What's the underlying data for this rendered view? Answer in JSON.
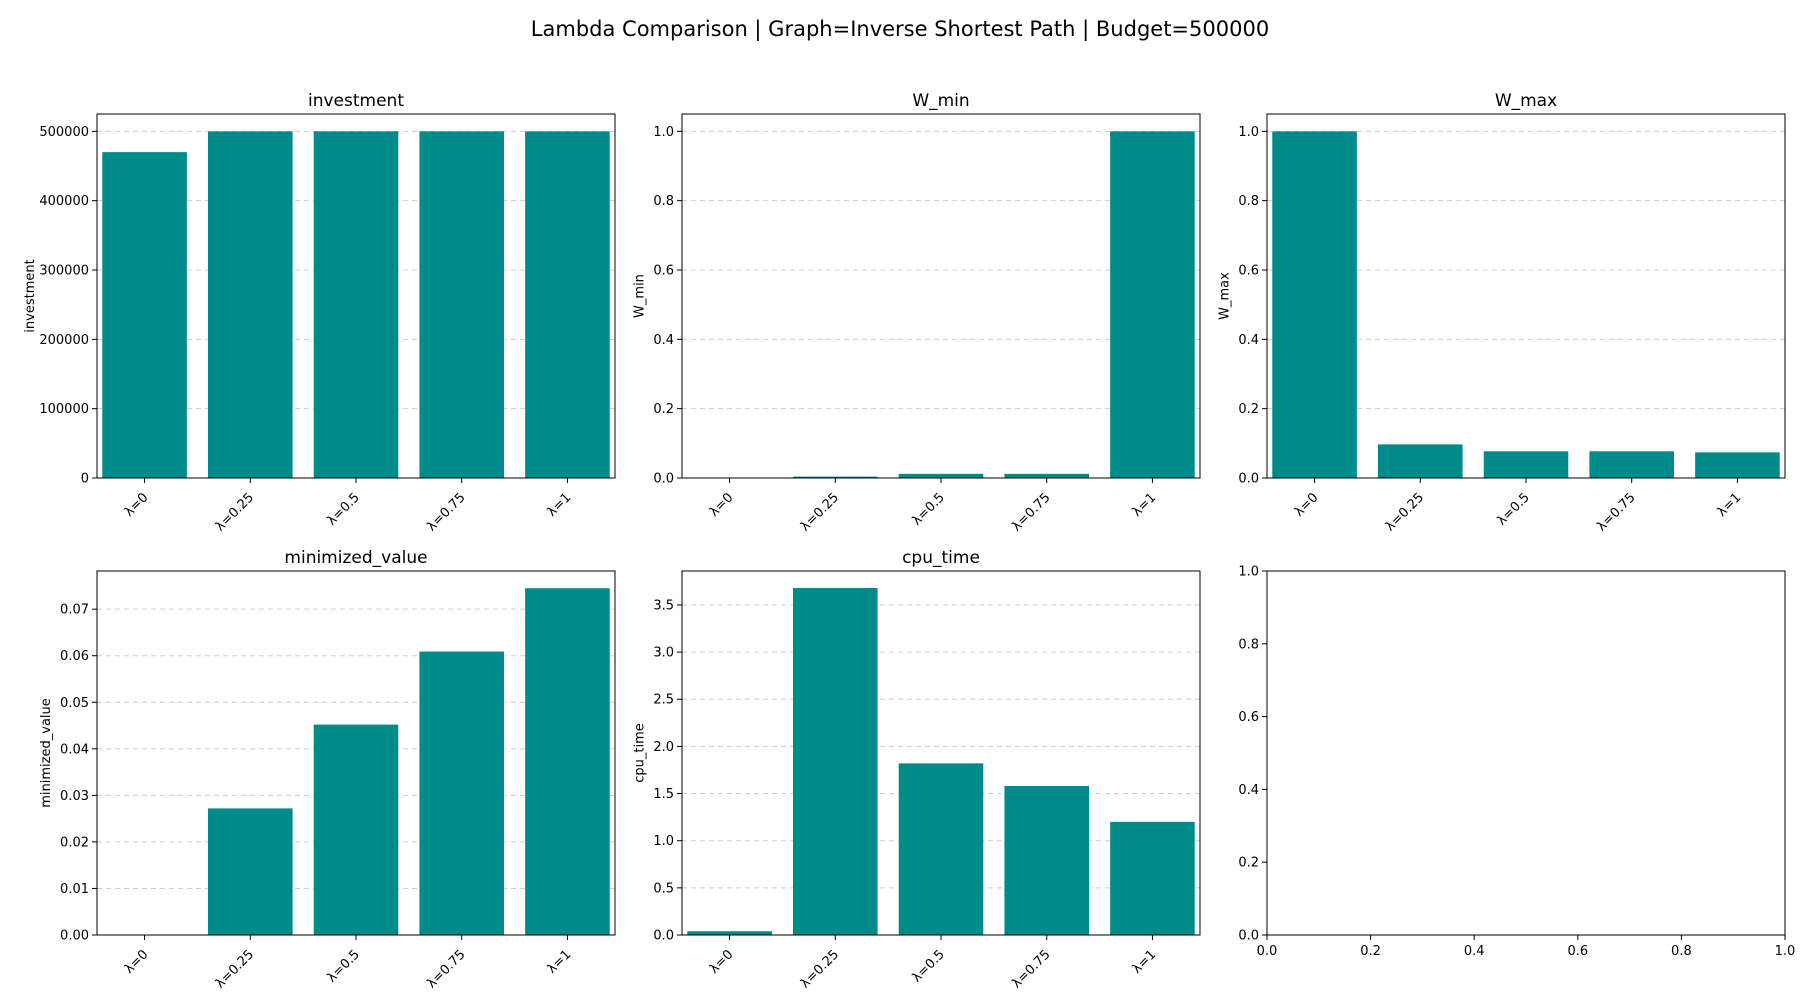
{
  "figure": {
    "title": "Lambda Comparison | Graph=Inverse Shortest Path | Budget=500000",
    "bar_color": "#008b8b"
  },
  "chart_data": [
    {
      "type": "bar",
      "title": "investment",
      "ylabel": "investment",
      "categories": [
        "λ=0",
        "λ=0.25",
        "λ=0.5",
        "λ=0.75",
        "λ=1"
      ],
      "values": [
        470000,
        500000,
        500000,
        500000,
        500000
      ],
      "ylim": [
        0,
        525000
      ],
      "yticks": [
        0,
        100000,
        200000,
        300000,
        400000,
        500000
      ],
      "ytick_labels": [
        "0",
        "100000",
        "200000",
        "300000",
        "400000",
        "500000"
      ],
      "grid": "y-dashed"
    },
    {
      "type": "bar",
      "title": "W_min",
      "ylabel": "W_min",
      "categories": [
        "λ=0",
        "λ=0.25",
        "λ=0.5",
        "λ=0.75",
        "λ=1"
      ],
      "values": [
        0.0,
        0.004,
        0.012,
        0.012,
        1.0
      ],
      "ylim": [
        0,
        1.05
      ],
      "yticks": [
        0,
        0.2,
        0.4,
        0.6,
        0.8,
        1.0
      ],
      "ytick_labels": [
        "0.0",
        "0.2",
        "0.4",
        "0.6",
        "0.8",
        "1.0"
      ],
      "grid": "y-dashed"
    },
    {
      "type": "bar",
      "title": "W_max",
      "ylabel": "W_max",
      "categories": [
        "λ=0",
        "λ=0.25",
        "λ=0.5",
        "λ=0.75",
        "λ=1"
      ],
      "values": [
        1.0,
        0.097,
        0.077,
        0.077,
        0.074
      ],
      "ylim": [
        0,
        1.05
      ],
      "yticks": [
        0,
        0.2,
        0.4,
        0.6,
        0.8,
        1.0
      ],
      "ytick_labels": [
        "0.0",
        "0.2",
        "0.4",
        "0.6",
        "0.8",
        "1.0"
      ],
      "grid": "y-dashed"
    },
    {
      "type": "bar",
      "title": "minimized_value",
      "ylabel": "minimized_value",
      "categories": [
        "λ=0",
        "λ=0.25",
        "λ=0.5",
        "λ=0.75",
        "λ=1"
      ],
      "values": [
        0.0,
        0.0272,
        0.0452,
        0.0609,
        0.0745
      ],
      "ylim": [
        0,
        0.0782
      ],
      "yticks": [
        0,
        0.01,
        0.02,
        0.03,
        0.04,
        0.05,
        0.06,
        0.07
      ],
      "ytick_labels": [
        "0.00",
        "0.01",
        "0.02",
        "0.03",
        "0.04",
        "0.05",
        "0.06",
        "0.07"
      ],
      "grid": "y-dashed"
    },
    {
      "type": "bar",
      "title": "cpu_time",
      "ylabel": "cpu_time",
      "categories": [
        "λ=0",
        "λ=0.25",
        "λ=0.5",
        "λ=0.75",
        "λ=1"
      ],
      "values": [
        0.04,
        3.68,
        1.82,
        1.58,
        1.2
      ],
      "ylim": [
        0,
        3.86
      ],
      "yticks": [
        0,
        0.5,
        1.0,
        1.5,
        2.0,
        2.5,
        3.0,
        3.5
      ],
      "ytick_labels": [
        "0.0",
        "0.5",
        "1.0",
        "1.5",
        "2.0",
        "2.5",
        "3.0",
        "3.5"
      ],
      "grid": "y-dashed"
    },
    {
      "type": "empty",
      "xlim": [
        0,
        1
      ],
      "ylim": [
        0,
        1
      ],
      "xticks": [
        0,
        0.2,
        0.4,
        0.6,
        0.8,
        1.0
      ],
      "xtick_labels": [
        "0.0",
        "0.2",
        "0.4",
        "0.6",
        "0.8",
        "1.0"
      ],
      "yticks": [
        0,
        0.2,
        0.4,
        0.6,
        0.8,
        1.0
      ],
      "ytick_labels": [
        "0.0",
        "0.2",
        "0.4",
        "0.6",
        "0.8",
        "1.0"
      ],
      "grid": "none"
    }
  ]
}
